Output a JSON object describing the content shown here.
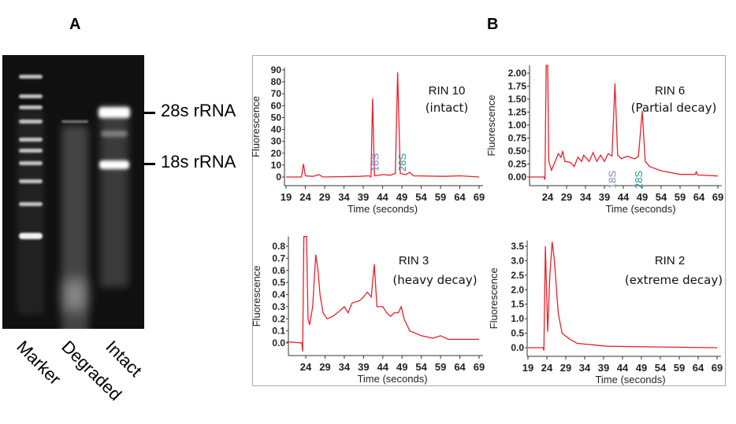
{
  "panel_a": {
    "letter": "A",
    "lanes": [
      "Marker",
      "Degraded",
      "Intact"
    ],
    "band_labels": [
      "28s rRNA",
      "18s rRNA"
    ]
  },
  "panel_b": {
    "letter": "B"
  },
  "colors": {
    "trace": "#e8202a",
    "label_18s": "#7b86c8",
    "label_28s": "#1a9a9a",
    "axis": "#333333"
  },
  "chart_data": [
    {
      "type": "line",
      "title": "RIN 10",
      "subtitle": "(intact)",
      "xlabel": "Time (seconds)",
      "ylabel": "Fluorescence",
      "xlim": [
        19,
        70
      ],
      "ylim": [
        -7,
        92
      ],
      "xticks": [
        19,
        24,
        29,
        34,
        39,
        44,
        49,
        54,
        59,
        64,
        69
      ],
      "yticks": [
        0,
        10,
        20,
        30,
        40,
        50,
        60,
        70,
        80,
        90
      ],
      "ytick_labels": [
        "0",
        "10",
        "20",
        "30",
        "40",
        "50",
        "60",
        "70",
        "80",
        "90"
      ],
      "annotations": [
        {
          "text": "18S",
          "x": 43
        },
        {
          "text": "28S",
          "x": 50
        }
      ],
      "x": [
        19,
        23,
        23.5,
        24,
        26,
        27.5,
        28.5,
        38,
        40.5,
        41,
        41.4,
        41.9,
        44,
        46,
        47.3,
        47.9,
        48.6,
        50,
        51,
        52,
        60,
        64,
        69
      ],
      "y": [
        0,
        0,
        11,
        1,
        0.5,
        2,
        0,
        0.5,
        1,
        0,
        66,
        1,
        2,
        1.5,
        3,
        88,
        3,
        2,
        4,
        1,
        0.5,
        1,
        0
      ]
    },
    {
      "type": "line",
      "title": "RIN 6",
      "subtitle": "(Partial decay)",
      "xlabel": "Time (seconds)",
      "ylabel": "Fluorescence",
      "xlim": [
        19,
        70
      ],
      "ylim": [
        -0.17,
        2.15
      ],
      "xticks": [
        24,
        29,
        34,
        39,
        44,
        49,
        54,
        59,
        64,
        69
      ],
      "yticks": [
        0,
        0.25,
        0.5,
        0.75,
        1,
        1.25,
        1.5,
        1.75,
        2
      ],
      "ytick_labels": [
        "0.00",
        "0.25",
        "0.50",
        "0.75",
        "1.00",
        "1.25",
        "1.50",
        "1.75",
        "2.00"
      ],
      "annotations": [
        {
          "text": "18S",
          "x": 42
        },
        {
          "text": "28S",
          "x": 49
        }
      ],
      "x": [
        19,
        23,
        23.3,
        23.6,
        24,
        24.3,
        25,
        26,
        26.8,
        27.5,
        28,
        28.5,
        30,
        31,
        32,
        33,
        33.5,
        35,
        36,
        37,
        38,
        39,
        40,
        41,
        41.8,
        42.5,
        43.5,
        45,
        47,
        48,
        49,
        49.8,
        51,
        54,
        59,
        63,
        63.3,
        63.6,
        69
      ],
      "y": [
        0,
        0,
        -0.05,
        2.15,
        2.15,
        0.3,
        0.13,
        0.3,
        0.45,
        0.38,
        0.5,
        0.3,
        0.28,
        0.2,
        0.38,
        0.3,
        0.42,
        0.3,
        0.47,
        0.3,
        0.42,
        0.3,
        0.45,
        0.4,
        1.8,
        0.42,
        0.35,
        0.4,
        0.35,
        0.4,
        1.27,
        0.3,
        0.2,
        0.12,
        0.05,
        0.05,
        0.1,
        0.04,
        0.02
      ]
    },
    {
      "type": "line",
      "title": "RIN 3",
      "subtitle": "(heavy decay)",
      "xlabel": "Time (seconds)",
      "ylabel": "Fluorescence",
      "xlim": [
        19,
        70
      ],
      "ylim": [
        -0.1,
        0.88
      ],
      "xticks": [
        24,
        29,
        34,
        39,
        44,
        49,
        54,
        59,
        64,
        69
      ],
      "yticks": [
        0,
        0.1,
        0.2,
        0.3,
        0.4,
        0.5,
        0.6,
        0.7,
        0.8
      ],
      "ytick_labels": [
        "0.0",
        "0.1",
        "0.2",
        "0.3",
        "0.4",
        "0.5",
        "0.6",
        "0.7",
        "0.8"
      ],
      "annotations": [],
      "x": [
        19,
        23,
        23.2,
        23.5,
        24.2,
        24.6,
        25,
        25.8,
        26.6,
        27.2,
        27.7,
        28.5,
        29.5,
        31,
        33,
        34,
        35,
        36,
        38,
        39,
        40,
        41,
        41.8,
        42.5,
        44,
        45,
        46,
        47,
        48,
        48.8,
        49.5,
        51,
        54,
        57,
        59,
        61,
        65,
        69
      ],
      "y": [
        0.01,
        0,
        -0.07,
        0.88,
        0.88,
        0.2,
        0.15,
        0.3,
        0.73,
        0.6,
        0.4,
        0.25,
        0.2,
        0.22,
        0.27,
        0.3,
        0.25,
        0.33,
        0.35,
        0.38,
        0.42,
        0.38,
        0.65,
        0.3,
        0.3,
        0.25,
        0.22,
        0.25,
        0.25,
        0.3,
        0.2,
        0.1,
        0.06,
        0.04,
        0.06,
        0.03,
        0.03,
        0.03
      ]
    },
    {
      "type": "line",
      "title": "RIN 2",
      "subtitle": "(extreme decay)",
      "xlabel": "Time (seconds)",
      "ylabel": "Fluorescence",
      "xlim": [
        19,
        70
      ],
      "ylim": [
        -0.3,
        3.7
      ],
      "xticks": [
        19,
        24,
        29,
        34,
        39,
        44,
        49,
        54,
        59,
        64,
        69
      ],
      "yticks": [
        0,
        0.5,
        1,
        1.5,
        2,
        2.5,
        3,
        3.5
      ],
      "ytick_labels": [
        "0.0",
        "0.5",
        "1.0",
        "1.5",
        "2.0",
        "2.5",
        "3.0",
        "3.5"
      ],
      "annotations": [],
      "x": [
        19,
        23,
        23.2,
        23.6,
        24.2,
        24.8,
        25.4,
        26,
        27,
        28,
        30,
        32,
        36,
        40,
        69
      ],
      "y": [
        0,
        0,
        -0.1,
        3.5,
        0.55,
        2.5,
        3.65,
        3,
        1.2,
        0.5,
        0.3,
        0.15,
        0.1,
        0.05,
        0
      ]
    }
  ]
}
